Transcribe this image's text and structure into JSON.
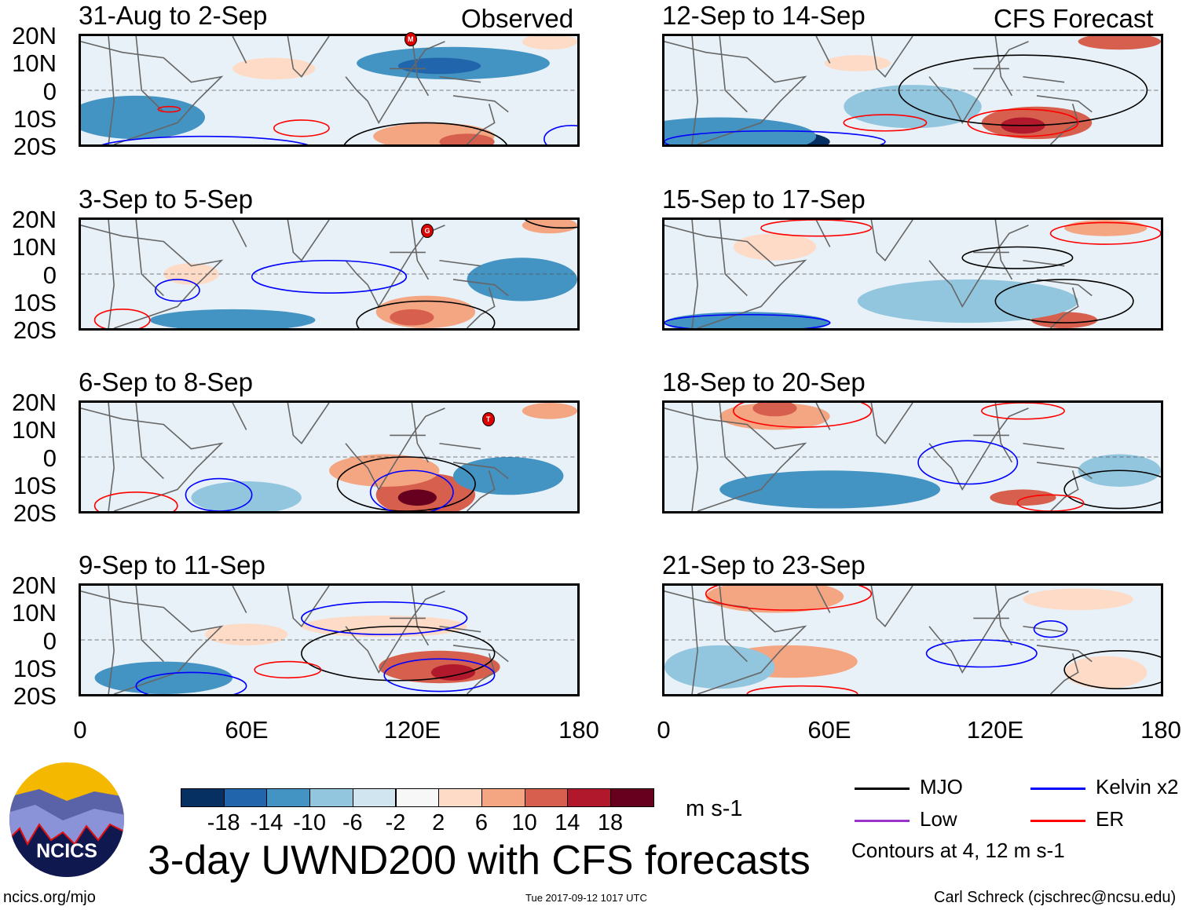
{
  "header": {
    "observed_label": "Observed",
    "forecast_label": "CFS Forecast"
  },
  "panels": {
    "observed": [
      {
        "title": "31-Aug to 2-Sep",
        "storm": "M"
      },
      {
        "title": "3-Sep to 5-Sep",
        "storm": "G"
      },
      {
        "title": "6-Sep to 8-Sep",
        "storm": "T"
      },
      {
        "title": "9-Sep to 11-Sep"
      }
    ],
    "forecast": [
      {
        "title": "12-Sep to 14-Sep"
      },
      {
        "title": "15-Sep to 17-Sep"
      },
      {
        "title": "18-Sep to 20-Sep"
      },
      {
        "title": "21-Sep to 23-Sep"
      }
    ]
  },
  "axes": {
    "lat_labels": [
      "20N",
      "10N",
      "0",
      "10S",
      "20S"
    ],
    "lon_labels": [
      "0",
      "60E",
      "120E",
      "180"
    ]
  },
  "colorbar": {
    "labels": [
      "-18",
      "-14",
      "-10",
      "-6",
      "-2",
      "2",
      "6",
      "10",
      "14",
      "18"
    ],
    "colors": [
      "#053061",
      "#2166ac",
      "#4393c3",
      "#92c5de",
      "#d1e5f0",
      "#f7f7f7",
      "#fddbc7",
      "#f4a582",
      "#d6604d",
      "#b2182b",
      "#67001f"
    ],
    "units": "m s-1"
  },
  "legend": {
    "items": [
      {
        "label": "MJO",
        "color": "#000000"
      },
      {
        "label": "Kelvin x2",
        "color": "#0000ff"
      },
      {
        "label": "Low",
        "color": "#9933cc"
      },
      {
        "label": "ER",
        "color": "#ff0000"
      }
    ],
    "contours_note": "Contours at 4, 12 m s-1"
  },
  "footer": {
    "title": "3-day UWND200 with CFS forecasts",
    "logo_text": "NCICS",
    "site": "ncics.org/mjo",
    "timestamp": "Tue 2017-09-12 1017 UTC",
    "author": "Carl Schreck (cjschrec@ncsu.edu)"
  }
}
